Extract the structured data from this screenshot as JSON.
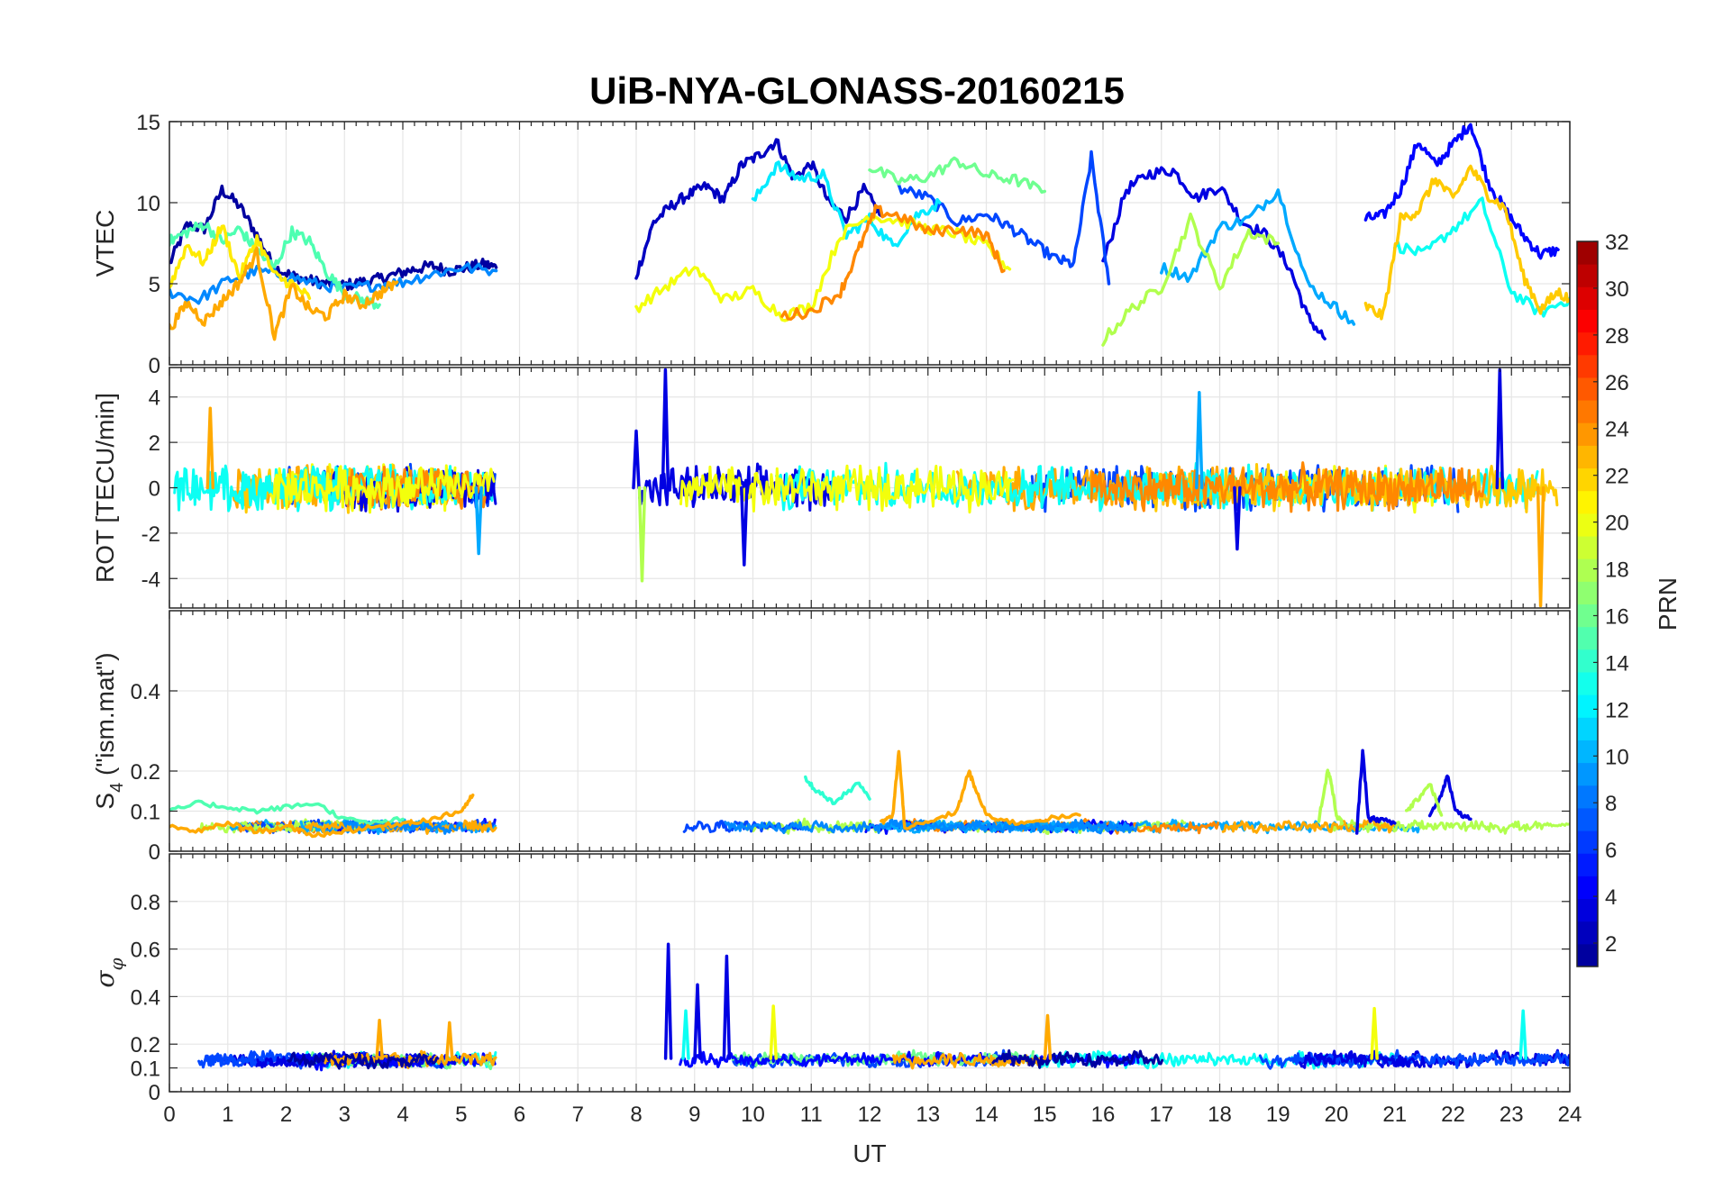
{
  "chart_data": {
    "type": "line",
    "title": "UiB-NYA-GLONASS-20160215",
    "xlabel": "UT",
    "xlim": [
      0,
      24
    ],
    "xticks": [
      "0",
      "1",
      "2",
      "3",
      "4",
      "5",
      "6",
      "7",
      "8",
      "9",
      "10",
      "11",
      "12",
      "13",
      "14",
      "15",
      "16",
      "17",
      "18",
      "19",
      "20",
      "21",
      "22",
      "23",
      "24"
    ],
    "grid": true,
    "data_gaps_UT": [
      [
        5.65,
        7.95
      ]
    ],
    "panels": [
      {
        "key": "vtec",
        "ylabel": "VTEC",
        "ylim": [
          0,
          15
        ],
        "yticks": [
          "0",
          "5",
          "10",
          "15"
        ],
        "ytick_values": [
          0,
          5,
          10,
          15
        ],
        "typical_level": "2 to 15 TECU, peaks near 14.8 at about 22.3 UT",
        "series": [
          {
            "prn": 2,
            "x": [
              0,
              0.3,
              0.6,
              0.9,
              1.2,
              1.5,
              1.8,
              2.1,
              2.4,
              2.7,
              3.0,
              3.3,
              3.6,
              3.9,
              4.2,
              4.5,
              4.8,
              5.1,
              5.4,
              5.6
            ],
            "y": [
              6.2,
              8.6,
              8.4,
              10.8,
              9.8,
              8.0,
              6.0,
              5.5,
              5.2,
              5.0,
              4.9,
              5.1,
              5.3,
              5.6,
              5.9,
              6.1,
              5.8,
              6.0,
              6.2,
              6.0
            ]
          },
          {
            "prn": 3,
            "x": [
              8.0,
              8.3,
              8.6,
              8.9,
              9.2,
              9.5,
              9.8,
              10.1,
              10.4,
              10.7,
              11.0,
              11.3,
              11.6,
              11.9,
              12.2
            ],
            "y": [
              5.5,
              8.8,
              9.8,
              10.5,
              11.0,
              10.2,
              12.3,
              12.9,
              13.8,
              11.5,
              12.4,
              10.0,
              9.1,
              10.8,
              9.2
            ]
          },
          {
            "prn": 4,
            "x": [
              16.0,
              16.4,
              16.8,
              17.2,
              17.6,
              18.0,
              18.4,
              18.8,
              19.2,
              19.5,
              19.8
            ],
            "y": [
              6.3,
              10.8,
              11.8,
              12.0,
              10.3,
              11.0,
              8.8,
              8.0,
              6.0,
              3.0,
              1.6
            ]
          },
          {
            "prn": 5,
            "x": [
              20.5,
              20.8,
              21.1,
              21.4,
              21.7,
              22.0,
              22.3,
              22.6,
              22.9,
              23.2,
              23.5,
              23.8
            ],
            "y": [
              9.0,
              9.2,
              10.8,
              13.8,
              12.3,
              13.6,
              14.9,
              11.3,
              9.5,
              8.0,
              6.8,
              7.1
            ]
          },
          {
            "prn": 7,
            "x": [
              12.5,
              13.0,
              13.5,
              14.0,
              14.4,
              14.8,
              15.2,
              15.5,
              15.8,
              16.1
            ],
            "y": [
              10.9,
              10.3,
              8.8,
              9.3,
              8.5,
              7.5,
              6.5,
              6.2,
              12.8,
              5.0
            ]
          },
          {
            "prn": 9,
            "x": [
              0,
              0.5,
              1.0,
              1.5,
              2.0,
              2.5,
              3.0,
              3.5,
              4.0,
              4.5,
              5.0,
              5.6
            ],
            "y": [
              4.5,
              4.0,
              5.2,
              5.8,
              5.5,
              5.0,
              4.7,
              4.9,
              5.1,
              5.6,
              6.0,
              5.8
            ]
          },
          {
            "prn": 10,
            "x": [
              17.0,
              17.5,
              18.0,
              18.5,
              19.0,
              19.5,
              20.0,
              20.3
            ],
            "y": [
              6.0,
              5.4,
              8.5,
              9.0,
              10.8,
              5.0,
              3.5,
              2.5
            ]
          },
          {
            "prn": 12,
            "x": [
              10.0,
              10.4,
              10.8,
              11.2,
              11.6,
              12.0,
              12.4,
              12.8,
              13.2
            ],
            "y": [
              10.0,
              12.3,
              11.5,
              11.7,
              8.0,
              9.0,
              7.3,
              9.2,
              10.0
            ]
          },
          {
            "prn": 13,
            "x": [
              21.0,
              21.5,
              22.0,
              22.5,
              23.0,
              23.5,
              24.0
            ],
            "y": [
              7.4,
              6.8,
              8.4,
              10.0,
              4.5,
              3.2,
              4.1
            ]
          },
          {
            "prn": 15,
            "x": [
              0,
              0.3,
              0.6,
              0.9,
              1.2,
              1.5,
              1.8,
              2.1,
              2.4,
              2.7,
              3.0,
              3.3,
              3.6
            ],
            "y": [
              7.6,
              8.2,
              8.7,
              7.6,
              8.4,
              7.0,
              6.0,
              8.2,
              7.6,
              5.7,
              4.4,
              4.0,
              3.7
            ]
          },
          {
            "prn": 16,
            "x": [
              12.0,
              12.5,
              13.0,
              13.5,
              14.0,
              14.5,
              15.0
            ],
            "y": [
              12.2,
              11.3,
              11.6,
              12.6,
              11.7,
              11.4,
              10.7
            ]
          },
          {
            "prn": 18,
            "x": [
              16.0,
              16.5,
              17.0,
              17.5,
              18.0,
              18.5,
              19.0
            ],
            "y": [
              1.5,
              3.5,
              4.8,
              9.0,
              4.8,
              8.2,
              7.5
            ]
          },
          {
            "prn": 20,
            "x": [
              8.0,
              8.5,
              9.0,
              9.5,
              10.0,
              10.5,
              11.0,
              11.5,
              12.0,
              12.5,
              13.0,
              13.5,
              14.0,
              14.4
            ],
            "y": [
              3.5,
              4.8,
              6.0,
              4.0,
              4.6,
              3.0,
              3.6,
              8.0,
              9.2,
              8.9,
              8.4,
              8.1,
              7.3,
              5.9
            ]
          },
          {
            "prn": 21,
            "x": [
              0,
              0.3,
              0.6,
              0.9,
              1.2,
              1.5,
              1.8,
              2.1,
              2.4
            ],
            "y": [
              4.8,
              7.4,
              6.3,
              8.6,
              5.4,
              7.8,
              5.5,
              5.0,
              4.1
            ]
          },
          {
            "prn": 22,
            "x": [
              20.5,
              20.8,
              21.1,
              21.4,
              21.7,
              22.0,
              22.3,
              22.6,
              22.9,
              23.2,
              23.5,
              23.8,
              24.0
            ],
            "y": [
              3.6,
              3.0,
              9.0,
              9.5,
              11.5,
              10.2,
              12.2,
              10.5,
              9.6,
              5.5,
              3.4,
              4.5,
              4.0
            ]
          },
          {
            "prn": 23,
            "x": [
              0,
              0.3,
              0.6,
              0.9,
              1.2,
              1.5,
              1.8,
              2.1,
              2.4,
              2.7,
              3.0,
              3.3,
              3.6,
              3.9
            ],
            "y": [
              2.2,
              3.8,
              2.7,
              3.9,
              5.1,
              6.9,
              1.8,
              4.8,
              3.4,
              3.0,
              4.3,
              3.7,
              4.4,
              5.1
            ]
          },
          {
            "prn": 24,
            "x": [
              10.5,
              11.0,
              11.5,
              11.8,
              12.1,
              12.5,
              13.0,
              13.5,
              14.0,
              14.3
            ],
            "y": [
              3.0,
              3.3,
              4.5,
              7.0,
              9.5,
              9.2,
              8.2,
              8.4,
              8.0,
              5.8
            ]
          }
        ]
      },
      {
        "key": "rot",
        "ylabel": "ROT [TECU/min]",
        "ylim": [
          -5.3,
          5.3
        ],
        "yticks": [
          "-4",
          "-2",
          "0",
          "2",
          "4"
        ],
        "ytick_values": [
          -4,
          -2,
          0,
          2,
          4
        ],
        "typical_level": "mostly within ±1 TECU/min",
        "spikes": [
          {
            "prn": 4,
            "x": 8.5,
            "y": 5.2
          },
          {
            "prn": 4,
            "x": 8.0,
            "y": 2.5
          },
          {
            "prn": 18,
            "x": 8.1,
            "y": -4.1
          },
          {
            "prn": 4,
            "x": 9.85,
            "y": -3.4
          },
          {
            "prn": 10,
            "x": 17.65,
            "y": 4.2
          },
          {
            "prn": 4,
            "x": 22.8,
            "y": 5.2
          },
          {
            "prn": 23,
            "x": 23.5,
            "y": -5.2
          },
          {
            "prn": 23,
            "x": 0.7,
            "y": 3.5
          },
          {
            "prn": 10,
            "x": 5.3,
            "y": -2.9
          },
          {
            "prn": 4,
            "x": 18.3,
            "y": -2.7
          }
        ]
      },
      {
        "key": "s4",
        "ylabel": "S",
        "ylabel_sub": "4",
        "ylabel_suffix": " (\"ism.mat\")",
        "ylim": [
          0,
          0.6
        ],
        "yticks": [
          "0",
          "0.1",
          "0.2",
          "0.4"
        ],
        "ytick_values": [
          0,
          0.1,
          0.2,
          0.4
        ],
        "typical_level": "0.03 to 0.12",
        "series": [
          {
            "prn": 15,
            "x": [
              0,
              0.5,
              1.0,
              1.5,
              2.0,
              2.5,
              3.0,
              3.5,
              4.0
            ],
            "y": [
              0.1,
              0.12,
              0.11,
              0.1,
              0.11,
              0.12,
              0.08,
              0.07,
              0.08
            ]
          },
          {
            "prn": 23,
            "x": [
              0,
              0.5,
              1.0,
              1.5,
              2.0,
              2.5,
              3.0,
              3.5,
              4.0,
              4.5,
              5.0,
              5.2
            ],
            "y": [
              0.06,
              0.05,
              0.07,
              0.05,
              0.06,
              0.04,
              0.05,
              0.06,
              0.07,
              0.08,
              0.1,
              0.14
            ]
          },
          {
            "prn": 23,
            "x": [
              12.2,
              12.4,
              12.5,
              12.6,
              13.0,
              13.5,
              13.7,
              13.8,
              14.0,
              14.5,
              15.0,
              15.6
            ],
            "y": [
              0.07,
              0.09,
              0.25,
              0.06,
              0.07,
              0.1,
              0.2,
              0.16,
              0.09,
              0.07,
              0.08,
              0.09
            ]
          },
          {
            "prn": 14,
            "x": [
              10.9,
              11.1,
              11.4,
              11.8,
              12.0
            ],
            "y": [
              0.18,
              0.15,
              0.12,
              0.17,
              0.13
            ]
          },
          {
            "prn": 4,
            "x": [
              20.35,
              20.45,
              20.55,
              20.7,
              21.0
            ],
            "y": [
              0.05,
              0.25,
              0.08,
              0.08,
              0.07
            ]
          },
          {
            "prn": 4,
            "x": [
              21.6,
              21.8,
              21.9,
              22.05,
              22.3
            ],
            "y": [
              0.09,
              0.14,
              0.19,
              0.1,
              0.08
            ]
          },
          {
            "prn": 18,
            "x": [
              19.7,
              19.85,
              19.9,
              20.0,
              20.1
            ],
            "y": [
              0.08,
              0.2,
              0.18,
              0.09,
              0.07
            ]
          },
          {
            "prn": 18,
            "x": [
              21.2,
              21.4,
              21.6,
              21.8
            ],
            "y": [
              0.1,
              0.13,
              0.17,
              0.09
            ]
          }
        ]
      },
      {
        "key": "sigma_phi",
        "ylabel": "σ",
        "ylabel_sub": "φ",
        "ylim": [
          0,
          1
        ],
        "yticks": [
          "0",
          "0.1",
          "0.2",
          "0.4",
          "0.6",
          "0.8"
        ],
        "ytick_values": [
          0,
          0.1,
          0.2,
          0.4,
          0.6,
          0.8
        ],
        "typical_level": "0.1 to 0.2",
        "spikes": [
          {
            "prn": 4,
            "x": 8.55,
            "y": 0.62
          },
          {
            "prn": 4,
            "x": 9.05,
            "y": 0.45
          },
          {
            "prn": 4,
            "x": 9.55,
            "y": 0.57
          },
          {
            "prn": 13,
            "x": 8.85,
            "y": 0.34
          },
          {
            "prn": 20,
            "x": 10.35,
            "y": 0.36
          },
          {
            "prn": 23,
            "x": 3.6,
            "y": 0.3
          },
          {
            "prn": 23,
            "x": 4.8,
            "y": 0.29
          },
          {
            "prn": 23,
            "x": 15.05,
            "y": 0.32
          },
          {
            "prn": 20,
            "x": 20.65,
            "y": 0.35
          },
          {
            "prn": 13,
            "x": 23.2,
            "y": 0.34
          }
        ]
      }
    ],
    "colorbar": {
      "label": "PRN",
      "range": [
        1,
        32
      ],
      "ticks": [
        "2",
        "4",
        "6",
        "8",
        "10",
        "12",
        "14",
        "16",
        "18",
        "20",
        "22",
        "24",
        "26",
        "28",
        "30",
        "32"
      ],
      "tick_values": [
        2,
        4,
        6,
        8,
        10,
        12,
        14,
        16,
        18,
        20,
        22,
        24,
        26,
        28,
        30,
        32
      ],
      "colormap": "jet"
    }
  }
}
